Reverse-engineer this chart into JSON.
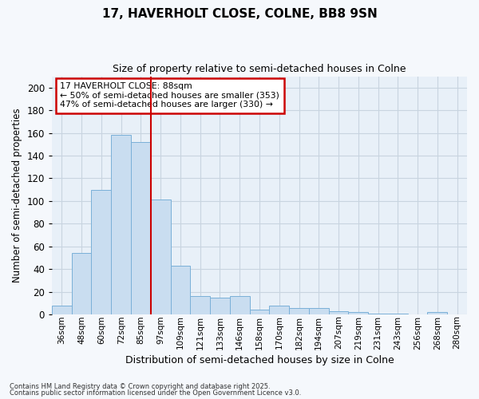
{
  "title": "17, HAVERHOLT CLOSE, COLNE, BB8 9SN",
  "subtitle": "Size of property relative to semi-detached houses in Colne",
  "xlabel": "Distribution of semi-detached houses by size in Colne",
  "ylabel": "Number of semi-detached properties",
  "categories": [
    "36sqm",
    "48sqm",
    "60sqm",
    "72sqm",
    "85sqm",
    "97sqm",
    "109sqm",
    "121sqm",
    "133sqm",
    "146sqm",
    "158sqm",
    "170sqm",
    "182sqm",
    "194sqm",
    "207sqm",
    "219sqm",
    "231sqm",
    "243sqm",
    "256sqm",
    "268sqm",
    "280sqm"
  ],
  "values": [
    8,
    54,
    110,
    158,
    152,
    101,
    43,
    16,
    15,
    16,
    4,
    8,
    6,
    6,
    3,
    2,
    1,
    1,
    0,
    2,
    0
  ],
  "bar_color": "#c9ddf0",
  "bar_edge_color": "#7ab0d8",
  "grid_color": "#c8d4e0",
  "background_color": "#e8f0f8",
  "fig_background_color": "#f5f8fc",
  "red_line_index": 4.5,
  "annotation_title": "17 HAVERHOLT CLOSE: 88sqm",
  "annotation_line1": "← 50% of semi-detached houses are smaller (353)",
  "annotation_line2": "47% of semi-detached houses are larger (330) →",
  "annotation_box_color": "#ffffff",
  "annotation_box_edge": "#cc0000",
  "red_line_color": "#cc0000",
  "ylim": [
    0,
    210
  ],
  "yticks": [
    0,
    20,
    40,
    60,
    80,
    100,
    120,
    140,
    160,
    180,
    200
  ],
  "footer1": "Contains HM Land Registry data © Crown copyright and database right 2025.",
  "footer2": "Contains public sector information licensed under the Open Government Licence v3.0."
}
